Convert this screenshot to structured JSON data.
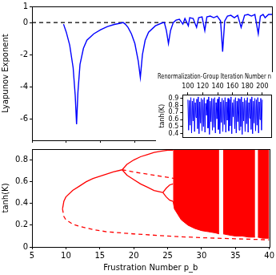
{
  "chart_data": [
    {
      "type": "line",
      "y_label": "Lyapunov Exponent",
      "xlim": [
        5,
        40
      ],
      "ylim": [
        -7.3,
        1
      ],
      "xticks": [
        5,
        10,
        15,
        20,
        25,
        30,
        35,
        40
      ],
      "yticks": [
        -6,
        -4,
        -2,
        0,
        1
      ],
      "grid": false,
      "tick_labels": "y",
      "series": [
        {
          "color": "#0000ff",
          "line_style": "solid",
          "x": [
            9.6,
            10,
            10.5,
            11,
            11.3,
            11.5,
            11.7,
            12,
            12.5,
            13,
            14,
            15,
            16,
            17,
            18,
            18.3,
            18.6,
            19,
            19.5,
            20,
            20.5,
            20.8,
            21.1,
            21.5,
            22,
            23,
            24,
            24.3,
            24.6,
            24.9,
            25.2,
            25.6,
            26,
            26.5,
            27,
            27.3,
            27.8,
            28,
            28.5,
            29,
            29.3,
            29.8,
            30.2,
            30.5,
            31,
            31.5,
            32,
            32.5,
            32.8,
            33.1,
            33.5,
            34,
            34.5,
            35,
            35.5,
            36,
            36.5,
            37,
            37.5,
            38,
            38.3,
            38.7,
            39,
            39.5,
            40
          ],
          "values": [
            -0.1,
            -0.6,
            -1.4,
            -2.8,
            -4.5,
            -6.3,
            -4.3,
            -2.6,
            -1.6,
            -1.1,
            -0.7,
            -0.45,
            -0.25,
            -0.12,
            -0.03,
            0,
            -0.1,
            -0.3,
            -0.7,
            -1.3,
            -2.4,
            -3.4,
            -2.0,
            -1.1,
            -0.6,
            -0.2,
            -0.02,
            0,
            -0.5,
            -1.3,
            -0.5,
            0,
            0.15,
            0.2,
            -0.1,
            0.25,
            -0.2,
            0.3,
            0.25,
            -0.3,
            0.3,
            0.35,
            -0.5,
            0.35,
            0.4,
            0.3,
            0.4,
            0.1,
            -1.8,
            0.1,
            0.4,
            0.45,
            0.3,
            0.45,
            -0.3,
            0.45,
            0.5,
            0.4,
            0.5,
            -0.7,
            0.4,
            0.5,
            0.3,
            0.5,
            0.5
          ]
        },
        {
          "color": "#000000",
          "line_style": "dashed",
          "x": [
            5,
            40
          ],
          "values": [
            0,
            0
          ]
        }
      ]
    },
    {
      "type": "line",
      "title": "Renormalization-Group Iteration Number n",
      "y_label": "tanh(K)",
      "xlim": [
        93,
        212
      ],
      "ylim": [
        0.35,
        0.95
      ],
      "xticks": [
        100,
        120,
        140,
        160,
        180,
        200
      ],
      "yticks": [
        0.4,
        0.5,
        0.6,
        0.7,
        0.8,
        0.9
      ],
      "grid": false,
      "series": [
        {
          "color": "#0000ff",
          "line_style": "solid",
          "x": [
            100,
            101,
            102,
            103,
            104,
            105,
            106,
            107,
            108,
            109,
            110,
            111,
            112,
            113,
            114,
            115,
            116,
            117,
            118,
            119,
            120,
            121,
            122,
            123,
            124,
            125,
            126,
            127,
            128,
            129,
            130,
            131,
            132,
            133,
            134,
            135,
            136,
            137,
            138,
            139,
            140,
            141,
            142,
            143,
            144,
            145,
            146,
            147,
            148,
            149,
            150,
            151,
            152,
            153,
            154,
            155,
            156,
            157,
            158,
            159,
            160,
            161,
            162,
            163,
            164,
            165,
            166,
            167,
            168,
            169,
            170,
            171,
            172,
            173,
            174,
            175,
            176,
            177,
            178,
            179,
            180,
            181,
            182,
            183,
            184,
            185,
            186,
            187,
            188,
            189,
            190,
            191,
            192,
            193,
            194,
            195,
            196,
            197,
            198,
            199,
            200
          ],
          "values": [
            0.88,
            0.45,
            0.87,
            0.52,
            0.91,
            0.41,
            0.86,
            0.58,
            0.9,
            0.43,
            0.84,
            0.63,
            0.89,
            0.47,
            0.92,
            0.4,
            0.85,
            0.55,
            0.9,
            0.44,
            0.88,
            0.5,
            0.91,
            0.42,
            0.83,
            0.66,
            0.88,
            0.48,
            0.92,
            0.39,
            0.86,
            0.57,
            0.9,
            0.45,
            0.89,
            0.49,
            0.91,
            0.41,
            0.84,
            0.61,
            0.89,
            0.46,
            0.92,
            0.4,
            0.85,
            0.56,
            0.9,
            0.43,
            0.87,
            0.53,
            0.91,
            0.42,
            0.85,
            0.59,
            0.9,
            0.44,
            0.88,
            0.51,
            0.92,
            0.4,
            0.84,
            0.64,
            0.88,
            0.47,
            0.91,
            0.41,
            0.86,
            0.57,
            0.9,
            0.45,
            0.89,
            0.5,
            0.92,
            0.39,
            0.85,
            0.58,
            0.9,
            0.43,
            0.87,
            0.54,
            0.91,
            0.42,
            0.84,
            0.62,
            0.89,
            0.46,
            0.92,
            0.4,
            0.86,
            0.55,
            0.9,
            0.44,
            0.88,
            0.52,
            0.91,
            0.41,
            0.85,
            0.6,
            0.9,
            0.45,
            0.88
          ]
        }
      ]
    },
    {
      "type": "line",
      "x_label": "Frustration Number p_b",
      "y_label": "tanh(K)",
      "xlim": [
        5,
        40
      ],
      "ylim": [
        0,
        0.9
      ],
      "xticks": [
        5,
        10,
        15,
        20,
        25,
        30,
        35,
        40
      ],
      "yticks": [
        0,
        0.2,
        0.4,
        0.6,
        0.8
      ],
      "grid": false,
      "series": [
        {
          "color": "#ff0000",
          "line_style": "solid",
          "x": [
            9.5,
            9.7,
            10,
            11,
            12,
            13,
            14,
            15,
            16,
            17,
            18.3
          ],
          "values": [
            0.35,
            0.42,
            0.46,
            0.52,
            0.56,
            0.6,
            0.63,
            0.65,
            0.67,
            0.69,
            0.71
          ]
        },
        {
          "color": "#ff0000",
          "line_style": "dashed",
          "x": [
            9.5,
            9.7,
            10,
            11,
            12,
            14,
            16,
            20,
            25,
            30,
            35,
            40
          ],
          "values": [
            0.35,
            0.28,
            0.25,
            0.21,
            0.19,
            0.16,
            0.14,
            0.12,
            0.1,
            0.085,
            0.075,
            0.065
          ]
        },
        {
          "color": "#ff0000",
          "line_style": "solid",
          "x": [
            18.3,
            19,
            20,
            21,
            22,
            23,
            24,
            25,
            25.8
          ],
          "values": [
            0.71,
            0.76,
            0.8,
            0.83,
            0.85,
            0.87,
            0.88,
            0.89,
            0.89
          ]
        },
        {
          "color": "#ff0000",
          "line_style": "solid",
          "x": [
            18.3,
            19,
            20,
            21,
            22,
            23,
            24.3
          ],
          "values": [
            0.71,
            0.66,
            0.62,
            0.58,
            0.55,
            0.52,
            0.5
          ]
        },
        {
          "color": "#ff0000",
          "line_style": "solid",
          "x": [
            24.3,
            24.8,
            25.3,
            25.8
          ],
          "values": [
            0.5,
            0.54,
            0.57,
            0.58
          ]
        },
        {
          "color": "#ff0000",
          "line_style": "solid",
          "x": [
            24.3,
            24.8,
            25.3,
            25.8
          ],
          "values": [
            0.5,
            0.46,
            0.43,
            0.42
          ]
        },
        {
          "color": "#ff0000",
          "line_style": "dashed",
          "x": [
            18.3,
            20,
            22,
            24,
            26
          ],
          "values": [
            0.71,
            0.69,
            0.67,
            0.65,
            0.63
          ]
        },
        {
          "type": "band",
          "color": "#ff0000",
          "x": [
            25.8,
            26,
            27,
            28,
            29,
            30,
            31,
            32,
            32.6,
            32.9,
            33.2,
            34,
            35,
            36,
            37,
            37.9,
            38.1,
            38.3,
            39,
            40
          ],
          "lower": [
            0.42,
            0.35,
            0.25,
            0.2,
            0.17,
            0.15,
            0.14,
            0.13,
            0.12,
            null,
            0.12,
            0.11,
            0.1,
            0.1,
            0.09,
            0.09,
            null,
            0.09,
            0.08,
            0.08
          ],
          "upper": [
            0.9,
            0.9,
            0.9,
            0.9,
            0.9,
            0.9,
            0.9,
            0.9,
            0.9,
            null,
            0.9,
            0.9,
            0.9,
            0.9,
            0.9,
            0.9,
            null,
            0.9,
            0.9,
            0.9
          ]
        }
      ]
    }
  ]
}
